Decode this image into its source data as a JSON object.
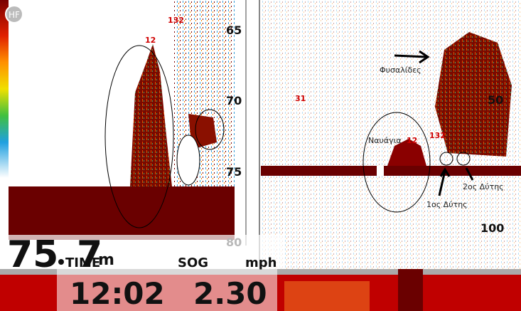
{
  "badge": "HF",
  "left_pane": {
    "labels": [
      "132",
      "12"
    ],
    "scale": [
      "65",
      "70",
      "75",
      "80"
    ]
  },
  "right_pane": {
    "labels": [
      "31",
      "12",
      "132"
    ],
    "annotations": [
      "Φυσαλίδες",
      "Ναυάγια",
      "1ος Δύτης",
      "2ος Δύτης"
    ],
    "scale": [
      "50",
      "100"
    ]
  },
  "depth": {
    "whole": "75",
    "fraction": "7",
    "unit": "m"
  },
  "footer": {
    "time_label": "TIME",
    "time": "12:02",
    "sog_label": "SOG",
    "sog": "2.30",
    "sog_unit": "mph"
  }
}
